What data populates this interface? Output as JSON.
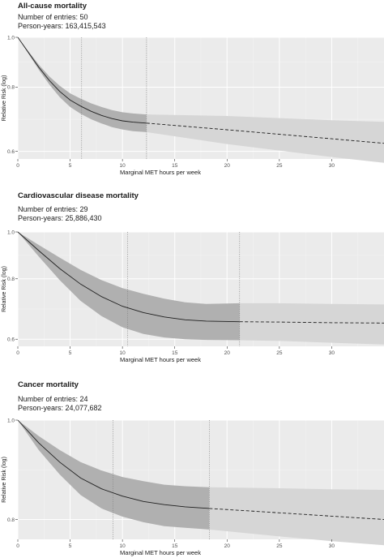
{
  "chart_data": [
    {
      "type": "line",
      "title": "All-cause mortality",
      "entries_label": "Number of entries: 50",
      "person_years_label": "Person-years: 163,415,543",
      "xlabel": "Marginal MET hours per week",
      "ylabel": "Relative Risk (log)",
      "yscale": "log",
      "xlim": [
        0,
        35
      ],
      "ylim": [
        0.58,
        1.0
      ],
      "xticks": [
        0,
        5,
        10,
        15,
        20,
        25,
        30
      ],
      "yticks": [
        0.6,
        0.8,
        1.0
      ],
      "ytick_labels": [
        "0.6",
        "0.8",
        "1.0"
      ],
      "vlines": [
        6.1,
        12.3
      ],
      "grid": true,
      "series": [
        {
          "style": "solid",
          "x": [
            0,
            1,
            2,
            3,
            4,
            5,
            6,
            7,
            8,
            9,
            10,
            11,
            12.3
          ],
          "y": [
            1.0,
            0.935,
            0.875,
            0.825,
            0.785,
            0.755,
            0.735,
            0.718,
            0.705,
            0.695,
            0.688,
            0.684,
            0.681
          ],
          "lower": [
            1.0,
            0.93,
            0.865,
            0.81,
            0.765,
            0.732,
            0.71,
            0.693,
            0.68,
            0.669,
            0.662,
            0.657,
            0.654
          ],
          "upper": [
            1.0,
            0.94,
            0.885,
            0.84,
            0.805,
            0.778,
            0.76,
            0.744,
            0.732,
            0.722,
            0.715,
            0.711,
            0.708
          ]
        },
        {
          "style": "dashed",
          "x": [
            12.3,
            20,
            30,
            35
          ],
          "y": [
            0.681,
            0.661,
            0.635,
            0.622
          ],
          "lower": [
            0.654,
            0.62,
            0.585,
            0.57
          ],
          "upper": [
            0.708,
            0.703,
            0.69,
            0.685
          ]
        }
      ]
    },
    {
      "type": "line",
      "title": "Cardiovascular disease mortality",
      "entries_label": "Number of entries: 29",
      "person_years_label": "Person-years: 25,886,430",
      "xlabel": "Marginal MET hours per week",
      "ylabel": "Relative Risk (log)",
      "yscale": "log",
      "xlim": [
        0,
        35
      ],
      "ylim": [
        0.58,
        1.0
      ],
      "xticks": [
        0,
        5,
        10,
        15,
        20,
        25,
        30
      ],
      "yticks": [
        0.6,
        0.8,
        1.0
      ],
      "ytick_labels": [
        "0.6",
        "0.8",
        "1.0"
      ],
      "vlines": [
        10.5,
        21.2
      ],
      "grid": true,
      "series": [
        {
          "style": "solid",
          "x": [
            0,
            2,
            4,
            6,
            8,
            10,
            12,
            14,
            16,
            18,
            21.2
          ],
          "y": [
            1.0,
            0.915,
            0.84,
            0.78,
            0.735,
            0.702,
            0.681,
            0.667,
            0.658,
            0.654,
            0.652
          ],
          "lower": [
            1.0,
            0.89,
            0.795,
            0.72,
            0.67,
            0.635,
            0.615,
            0.605,
            0.6,
            0.598,
            0.597
          ],
          "upper": [
            1.0,
            0.94,
            0.885,
            0.835,
            0.795,
            0.765,
            0.745,
            0.728,
            0.715,
            0.71,
            0.712
          ]
        },
        {
          "style": "dashed",
          "x": [
            21.2,
            25,
            30,
            35
          ],
          "y": [
            0.652,
            0.651,
            0.649,
            0.648
          ],
          "lower": [
            0.597,
            0.595,
            0.59,
            0.585
          ],
          "upper": [
            0.712,
            0.712,
            0.71,
            0.708
          ]
        }
      ]
    },
    {
      "type": "line",
      "title": "Cancer mortality",
      "entries_label": "Number of entries: 24",
      "person_years_label": "Person-years: 24,077,682",
      "xlabel": "Marginal MET hours per week",
      "ylabel": "Relative Risk (log)",
      "yscale": "log",
      "xlim": [
        0,
        35
      ],
      "ylim": [
        0.765,
        1.0
      ],
      "xticks": [
        0,
        5,
        10,
        15,
        20,
        25,
        30
      ],
      "yticks": [
        0.8,
        1.0
      ],
      "ytick_labels": [
        "0.8",
        "1.0"
      ],
      "vlines": [
        9.1,
        18.3
      ],
      "grid": true,
      "series": [
        {
          "style": "solid",
          "x": [
            0,
            2,
            4,
            6,
            8,
            10,
            12,
            14,
            16,
            18.3
          ],
          "y": [
            1.0,
            0.95,
            0.91,
            0.878,
            0.857,
            0.843,
            0.833,
            0.827,
            0.823,
            0.82
          ],
          "lower": [
            1.0,
            0.935,
            0.885,
            0.845,
            0.82,
            0.805,
            0.795,
            0.788,
            0.785,
            0.782
          ],
          "upper": [
            1.0,
            0.965,
            0.935,
            0.91,
            0.893,
            0.88,
            0.872,
            0.865,
            0.862,
            0.86
          ]
        },
        {
          "style": "dashed",
          "x": [
            18.3,
            25,
            30,
            35
          ],
          "y": [
            0.82,
            0.812,
            0.806,
            0.8
          ],
          "lower": [
            0.782,
            0.77,
            0.762,
            0.755
          ],
          "upper": [
            0.86,
            0.858,
            0.856,
            0.855
          ]
        }
      ]
    }
  ]
}
